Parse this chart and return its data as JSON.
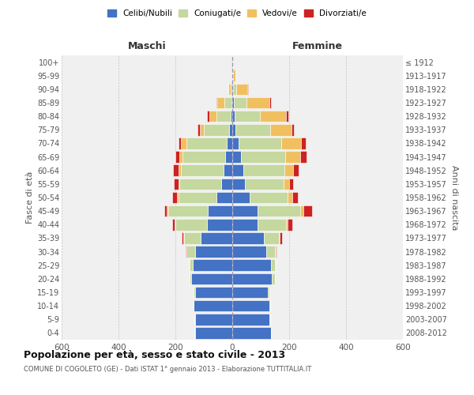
{
  "age_groups": [
    "0-4",
    "5-9",
    "10-14",
    "15-19",
    "20-24",
    "25-29",
    "30-34",
    "35-39",
    "40-44",
    "45-49",
    "50-54",
    "55-59",
    "60-64",
    "65-69",
    "70-74",
    "75-79",
    "80-84",
    "85-89",
    "90-94",
    "95-99",
    "100+"
  ],
  "birth_years": [
    "2008-2012",
    "2003-2007",
    "1998-2002",
    "1993-1997",
    "1988-1992",
    "1983-1987",
    "1978-1982",
    "1973-1977",
    "1968-1972",
    "1963-1967",
    "1958-1962",
    "1953-1957",
    "1948-1952",
    "1943-1947",
    "1938-1942",
    "1933-1937",
    "1928-1932",
    "1923-1927",
    "1918-1922",
    "1913-1917",
    "≤ 1912"
  ],
  "colors": {
    "celibi": "#4472C4",
    "coniugati": "#c5d8a0",
    "vedovi": "#f0c060",
    "divorziati": "#cc2222"
  },
  "maschi": {
    "celibi": [
      130,
      130,
      135,
      130,
      145,
      140,
      130,
      110,
      90,
      85,
      55,
      40,
      30,
      25,
      20,
      10,
      6,
      3,
      1,
      0,
      0
    ],
    "coniugati": [
      2,
      2,
      2,
      5,
      5,
      10,
      30,
      60,
      110,
      140,
      135,
      145,
      150,
      150,
      140,
      90,
      50,
      25,
      5,
      0,
      0
    ],
    "vedovi": [
      0,
      0,
      0,
      0,
      0,
      2,
      2,
      2,
      3,
      5,
      5,
      5,
      8,
      10,
      20,
      15,
      25,
      25,
      8,
      2,
      0
    ],
    "divorziati": [
      0,
      0,
      0,
      0,
      1,
      2,
      2,
      5,
      8,
      10,
      15,
      15,
      20,
      15,
      10,
      8,
      8,
      3,
      0,
      0,
      0
    ]
  },
  "femmine": {
    "celibi": [
      135,
      130,
      130,
      125,
      140,
      135,
      120,
      110,
      90,
      90,
      60,
      45,
      38,
      30,
      22,
      12,
      8,
      5,
      2,
      0,
      0
    ],
    "coniugati": [
      2,
      2,
      2,
      5,
      10,
      15,
      30,
      55,
      100,
      150,
      135,
      135,
      145,
      155,
      150,
      120,
      90,
      45,
      12,
      2,
      0
    ],
    "vedovi": [
      0,
      0,
      0,
      0,
      0,
      2,
      2,
      2,
      5,
      10,
      15,
      20,
      30,
      55,
      70,
      75,
      90,
      80,
      40,
      8,
      2
    ],
    "divorziati": [
      0,
      0,
      0,
      0,
      0,
      2,
      3,
      8,
      15,
      30,
      20,
      15,
      20,
      20,
      15,
      10,
      10,
      5,
      2,
      0,
      0
    ]
  },
  "title": "Popolazione per età, sesso e stato civile - 2013",
  "subtitle": "COMUNE DI COGOLETO (GE) - Dati ISTAT 1° gennaio 2013 - Elaborazione TUTTITALIA.IT",
  "xlabel_left": "Maschi",
  "xlabel_right": "Femmine",
  "ylabel_left": "Fasce di età",
  "ylabel_right": "Anni di nascita",
  "xlim": 600,
  "legend_labels": [
    "Celibi/Nubili",
    "Coniugati/e",
    "Vedovi/e",
    "Divorziati/e"
  ],
  "bg_color": "#f0f0f0",
  "bar_height": 0.85
}
